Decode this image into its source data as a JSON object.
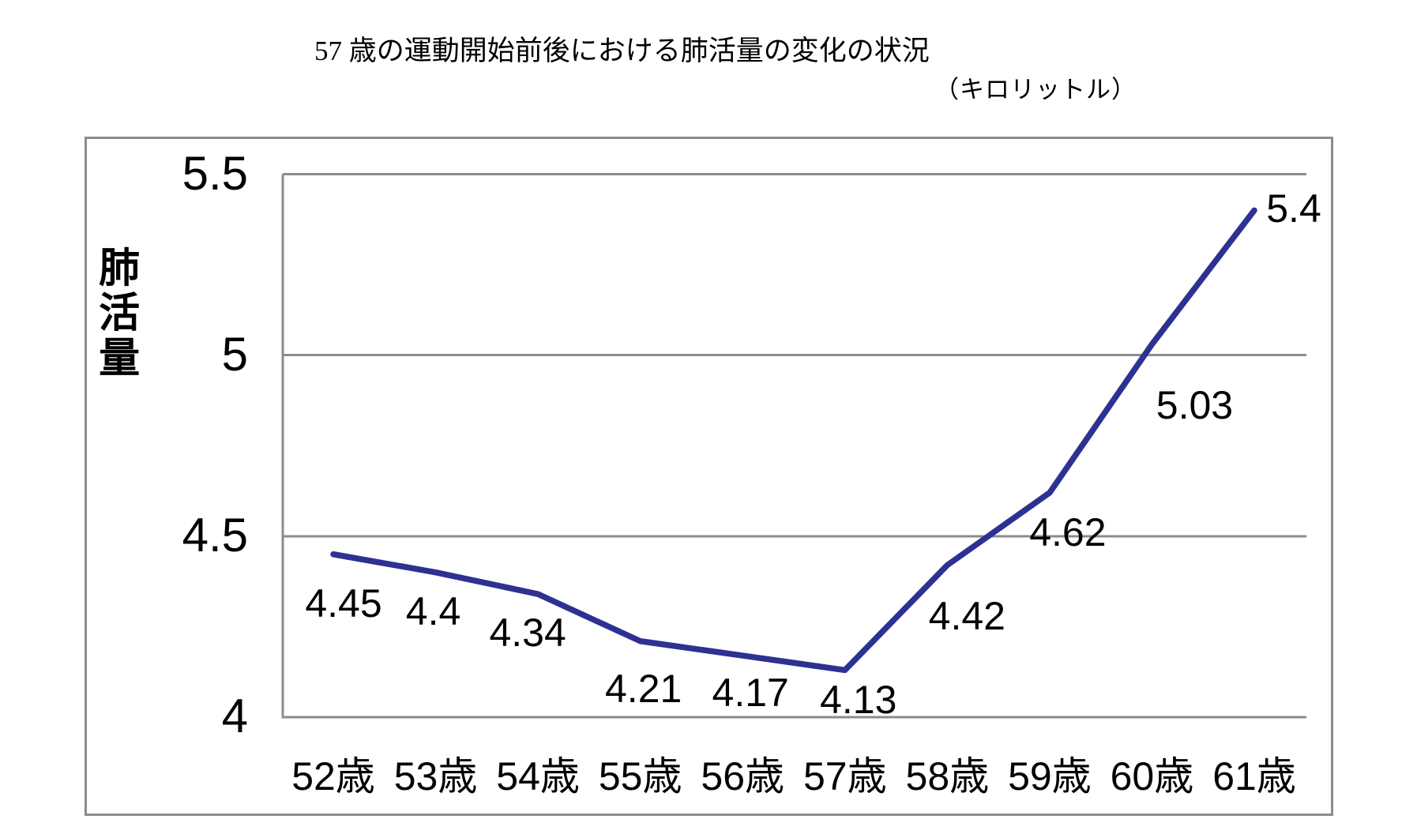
{
  "chart_data": {
    "type": "line",
    "title": "57 歳の運動開始前後における肺活量の変化の状況",
    "unit_label": "（キロリットル）",
    "y_axis_title": "肺活量",
    "xlabel": "",
    "ylabel": "肺活量",
    "categories": [
      "52歳",
      "53歳",
      "54歳",
      "55歳",
      "56歳",
      "57歳",
      "58歳",
      "59歳",
      "60歳",
      "61歳"
    ],
    "values": [
      4.45,
      4.4,
      4.34,
      4.21,
      4.17,
      4.13,
      4.42,
      4.62,
      5.03,
      5.4
    ],
    "data_labels": [
      "4.45",
      "4.4",
      "4.34",
      "4.21",
      "4.17",
      "4.13",
      "4.42",
      "4.62",
      "5.03",
      "5.4"
    ],
    "yticks": [
      "5.5",
      "5",
      "4.5",
      "4"
    ],
    "ylim": [
      4,
      5.5
    ],
    "grid": "horizontal-only",
    "legend": "none",
    "colors": {
      "line": "#2e3192",
      "gridline": "#8c8c8c",
      "border": "#8c8c8c",
      "text": "#000000",
      "background": "#ffffff"
    }
  }
}
